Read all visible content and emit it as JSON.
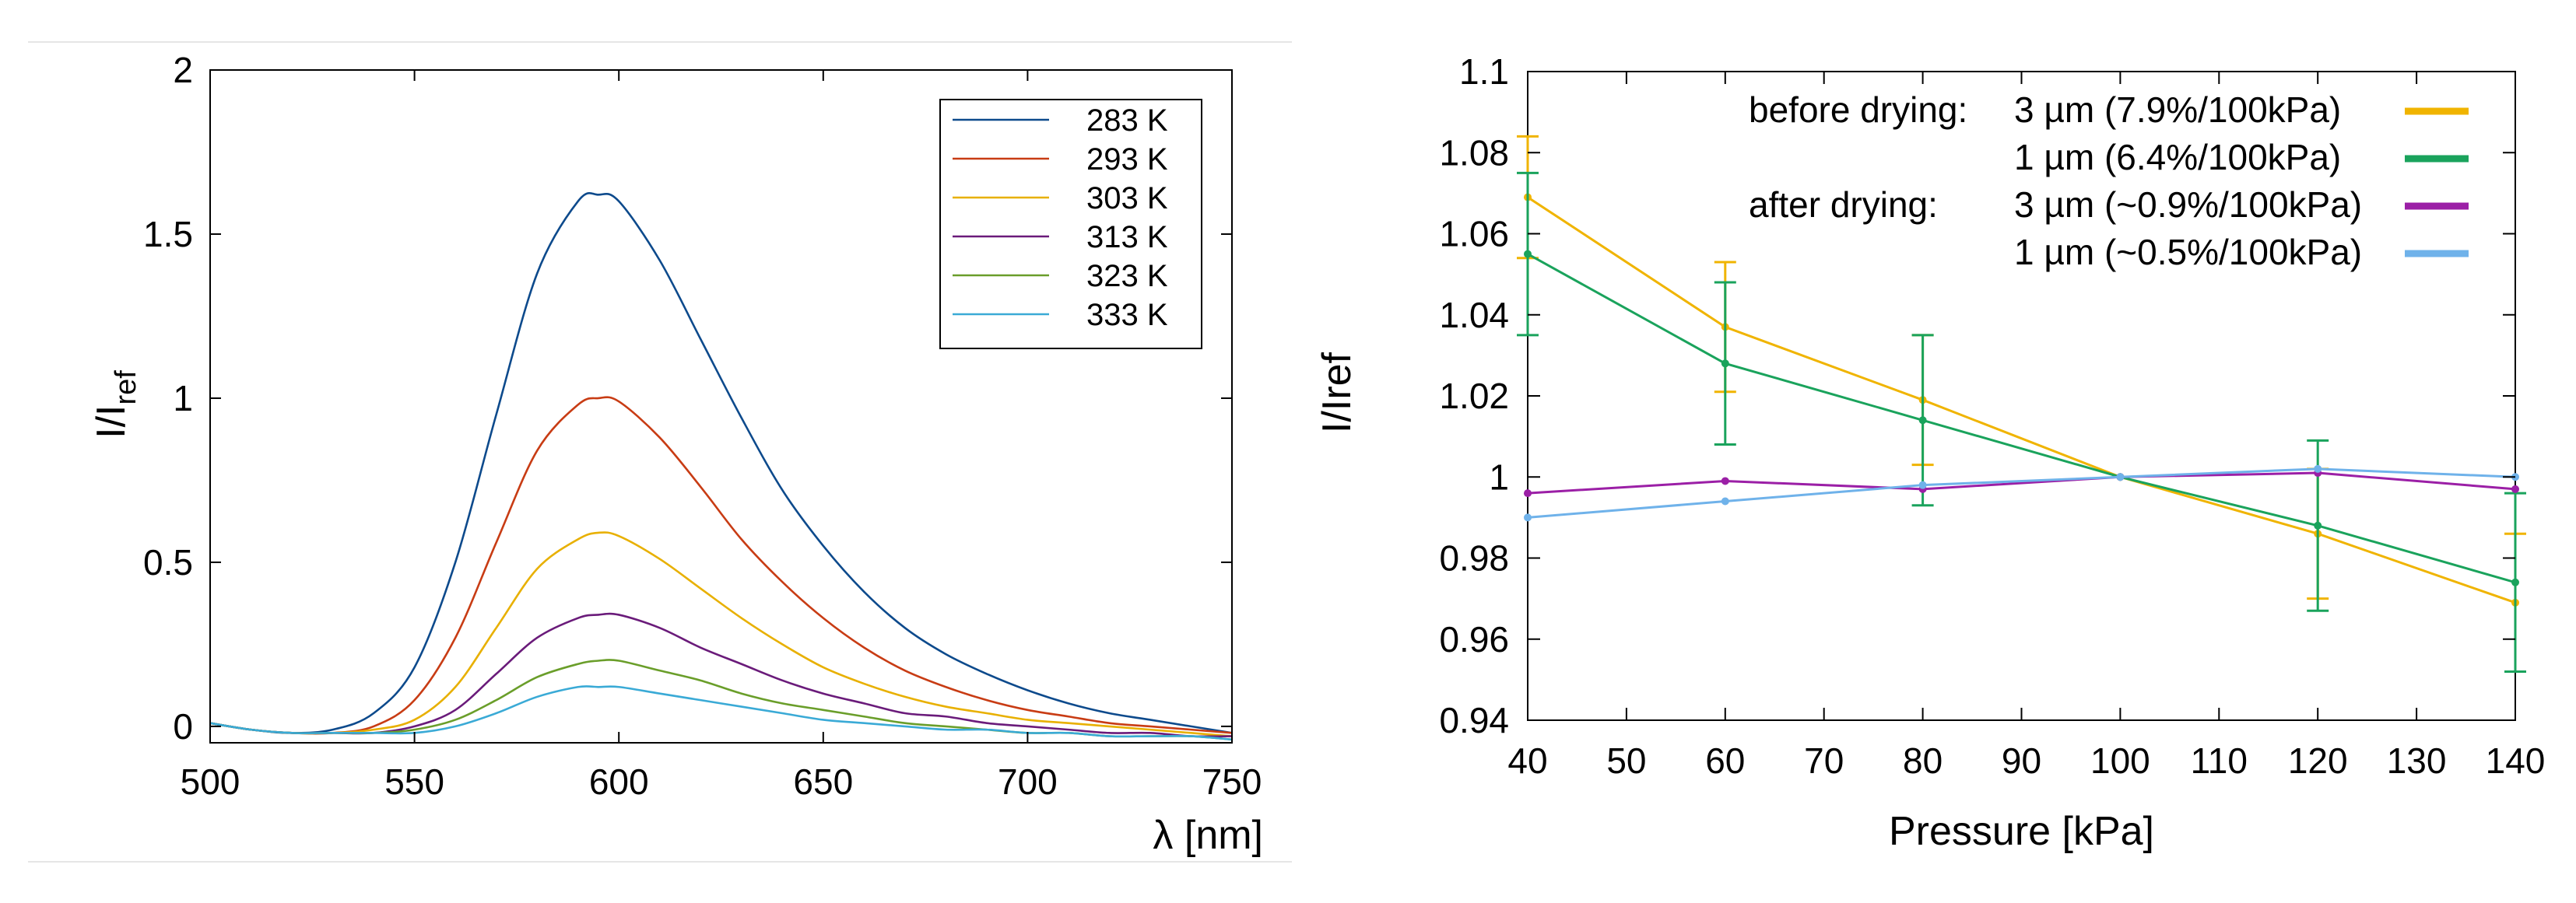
{
  "chart_data": [
    {
      "type": "line",
      "title": "",
      "xlabel": "λ [nm]",
      "ylabel": "I/I",
      "ylabel_sub": "ref",
      "xlim": [
        500,
        750
      ],
      "ylim": [
        -0.05,
        2
      ],
      "x_ticks": [
        500,
        550,
        600,
        650,
        700,
        750
      ],
      "x_tick_labels": [
        "500",
        "550",
        "600",
        "650",
        "700",
        "750"
      ],
      "y_ticks": [
        0,
        0.5,
        1,
        1.5,
        2
      ],
      "y_tick_labels": [
        "0",
        "0.5",
        "1",
        "1.5",
        "2"
      ],
      "grid": false,
      "legend_position": "top-right",
      "x": [
        500,
        510,
        520,
        530,
        540,
        550,
        560,
        570,
        580,
        590,
        595,
        600,
        610,
        620,
        630,
        640,
        650,
        660,
        670,
        680,
        690,
        700,
        710,
        720,
        730,
        740,
        750
      ],
      "series": [
        {
          "name": "283 K",
          "color": "#0d4a8c",
          "values": [
            0.01,
            -0.01,
            -0.02,
            -0.01,
            0.04,
            0.18,
            0.5,
            0.95,
            1.38,
            1.6,
            1.62,
            1.6,
            1.42,
            1.18,
            0.94,
            0.72,
            0.55,
            0.41,
            0.3,
            0.22,
            0.16,
            0.11,
            0.07,
            0.04,
            0.02,
            0.0,
            -0.02
          ]
        },
        {
          "name": "293 K",
          "color": "#c83c14",
          "values": [
            0.01,
            -0.01,
            -0.02,
            -0.02,
            0.0,
            0.08,
            0.27,
            0.56,
            0.84,
            0.98,
            1.0,
            0.99,
            0.88,
            0.73,
            0.57,
            0.44,
            0.33,
            0.24,
            0.17,
            0.12,
            0.08,
            0.05,
            0.03,
            0.01,
            0.0,
            -0.01,
            -0.02
          ]
        },
        {
          "name": "303 K",
          "color": "#e8b000",
          "values": [
            0.01,
            -0.01,
            -0.02,
            -0.02,
            -0.01,
            0.02,
            0.12,
            0.3,
            0.48,
            0.57,
            0.59,
            0.58,
            0.51,
            0.42,
            0.33,
            0.25,
            0.18,
            0.13,
            0.09,
            0.06,
            0.04,
            0.02,
            0.01,
            0.0,
            -0.01,
            -0.02,
            -0.03
          ]
        },
        {
          "name": "313 K",
          "color": "#6a1b7a",
          "values": [
            0.01,
            -0.01,
            -0.02,
            -0.02,
            -0.02,
            0.0,
            0.05,
            0.16,
            0.27,
            0.33,
            0.34,
            0.34,
            0.3,
            0.24,
            0.19,
            0.14,
            0.1,
            0.07,
            0.04,
            0.03,
            0.01,
            0.0,
            -0.01,
            -0.02,
            -0.02,
            -0.03,
            -0.03
          ]
        },
        {
          "name": "323 K",
          "color": "#6a9e2a",
          "values": [
            0.01,
            -0.01,
            -0.02,
            -0.02,
            -0.02,
            -0.01,
            0.02,
            0.08,
            0.15,
            0.19,
            0.2,
            0.2,
            0.17,
            0.14,
            0.1,
            0.07,
            0.05,
            0.03,
            0.01,
            0.0,
            -0.01,
            -0.02,
            -0.02,
            -0.03,
            -0.03,
            -0.03,
            -0.04
          ]
        },
        {
          "name": "333 K",
          "color": "#3aaad6",
          "values": [
            0.01,
            -0.01,
            -0.02,
            -0.02,
            -0.02,
            -0.02,
            0.0,
            0.04,
            0.09,
            0.12,
            0.12,
            0.12,
            0.1,
            0.08,
            0.06,
            0.04,
            0.02,
            0.01,
            0.0,
            -0.01,
            -0.01,
            -0.02,
            -0.02,
            -0.03,
            -0.03,
            -0.03,
            -0.04
          ]
        }
      ]
    },
    {
      "type": "line",
      "title": "",
      "xlabel": "Pressure [kPa]",
      "ylabel": "I/Iref",
      "xlim": [
        40,
        140
      ],
      "ylim": [
        0.94,
        1.1
      ],
      "x_ticks": [
        40,
        50,
        60,
        70,
        80,
        90,
        100,
        110,
        120,
        130,
        140
      ],
      "x_tick_labels": [
        "40",
        "50",
        "60",
        "70",
        "80",
        "90",
        "100",
        "110",
        "120",
        "130",
        "140"
      ],
      "y_ticks": [
        0.94,
        0.96,
        0.98,
        1.0,
        1.02,
        1.04,
        1.06,
        1.08,
        1.1
      ],
      "y_tick_labels": [
        "0.94",
        "0.96",
        "0.98",
        "1",
        "1.02",
        "1.04",
        "1.06",
        "1.08",
        "1.1"
      ],
      "grid": false,
      "legend_position": "top-right",
      "legend_groups": [
        "before drying:",
        "after drying:"
      ],
      "x": [
        40,
        60,
        80,
        100,
        120,
        140
      ],
      "series": [
        {
          "name": "3 µm (7.9%/100kPa)",
          "group": "before drying:",
          "color": "#f0b400",
          "values": [
            1.069,
            1.037,
            1.019,
            1.0,
            0.986,
            0.969
          ],
          "errors": [
            0.015,
            0.016,
            0.016,
            0,
            0.016,
            0.017
          ]
        },
        {
          "name": "1 µm (6.4%/100kPa)",
          "group": "before drying:",
          "color": "#1aa35c",
          "values": [
            1.055,
            1.028,
            1.014,
            1.0,
            0.988,
            0.974
          ],
          "errors": [
            0.02,
            0.02,
            0.021,
            0,
            0.021,
            0.022
          ]
        },
        {
          "name": "3 µm (~0.9%/100kPa)",
          "group": "after drying:",
          "color": "#9b1fa6",
          "values": [
            0.996,
            0.999,
            0.997,
            1.0,
            1.001,
            0.997
          ],
          "errors": [
            0,
            0,
            0,
            0,
            0,
            0
          ]
        },
        {
          "name": "1 µm (~0.5%/100kPa)",
          "group": "after drying:",
          "color": "#6fb2ea",
          "values": [
            0.99,
            0.994,
            0.998,
            1.0,
            1.002,
            1.0
          ],
          "errors": [
            0,
            0,
            0,
            0,
            0,
            0
          ]
        }
      ]
    }
  ]
}
